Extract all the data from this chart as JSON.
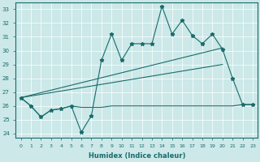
{
  "xlabel": "Humidex (Indice chaleur)",
  "xlim": [
    -0.5,
    23.5
  ],
  "ylim": [
    23.7,
    33.5
  ],
  "yticks": [
    24,
    25,
    26,
    27,
    28,
    29,
    30,
    31,
    32,
    33
  ],
  "xticks": [
    0,
    1,
    2,
    3,
    4,
    5,
    6,
    7,
    8,
    9,
    10,
    11,
    12,
    13,
    14,
    15,
    16,
    17,
    18,
    19,
    20,
    21,
    22,
    23
  ],
  "bg_color": "#cce8e8",
  "line_color": "#1a6b6b",
  "grid_color": "#b8d8d8",
  "jagged_x": [
    0,
    1,
    2,
    3,
    4,
    5,
    6,
    7,
    8,
    9,
    10,
    11,
    12,
    13,
    14,
    15,
    16,
    17,
    18,
    19,
    20,
    21,
    22,
    23
  ],
  "jagged_y": [
    26.6,
    26.0,
    25.2,
    25.7,
    25.8,
    26.0,
    24.1,
    25.3,
    29.3,
    31.2,
    29.3,
    30.5,
    30.5,
    30.5,
    33.2,
    31.2,
    32.2,
    31.1,
    30.5,
    31.2,
    30.1,
    28.0,
    26.1,
    26.1
  ],
  "flat_x": [
    0,
    1,
    2,
    3,
    4,
    5,
    6,
    7,
    8,
    9,
    10,
    11,
    12,
    13,
    14,
    15,
    16,
    17,
    18,
    19,
    20,
    21,
    22,
    23
  ],
  "flat_y": [
    26.6,
    26.0,
    25.2,
    25.7,
    25.8,
    26.0,
    25.9,
    25.9,
    25.9,
    26.0,
    26.0,
    26.0,
    26.0,
    26.0,
    26.0,
    26.0,
    26.0,
    26.0,
    26.0,
    26.0,
    26.0,
    26.0,
    26.1,
    26.1
  ],
  "trend1_x": [
    0,
    20,
    22,
    23
  ],
  "trend1_y": [
    26.6,
    30.2,
    26.1,
    26.1
  ],
  "trend2_x": [
    0,
    20,
    22,
    23
  ],
  "trend2_y": [
    26.6,
    29.0,
    26.1,
    26.1
  ]
}
